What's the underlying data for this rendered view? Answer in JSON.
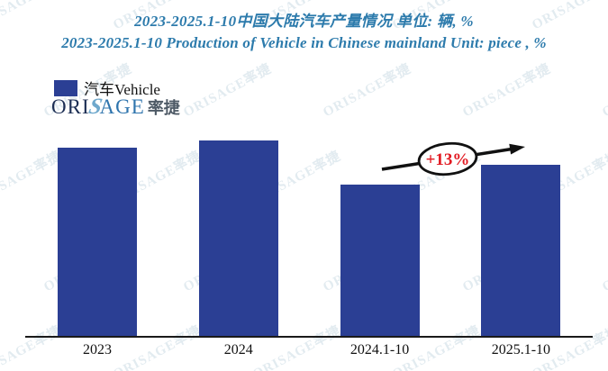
{
  "title": {
    "line1": "2023-2025.1-10中国大陆汽车产量情况 单位: 辆, %",
    "line2": "2023-2025.1-10 Production of Vehicle in Chinese mainland Unit: piece , %",
    "color": "#2d7bac"
  },
  "legend": {
    "label": "汽车Vehicle",
    "swatch_color": "#2b3f94"
  },
  "logo": {
    "ori": "ORI",
    "s": "S",
    "age": "AGE",
    "cn": "率捷"
  },
  "watermark": {
    "text": "ORISAGE率捷"
  },
  "chart_data": {
    "type": "bar",
    "title": "2023-2025.1-10中国大陆汽车产量情况 单位: 辆, %",
    "subtitle": "2023-2025.1-10 Production of Vehicle in Chinese mainland Unit: piece , %",
    "categories": [
      "2023",
      "2024",
      "2024.1-10",
      "2025.1-10"
    ],
    "values": [
      100,
      103.9,
      80.6,
      91.1
    ],
    "note": "No value axis or data labels are shown in the chart; values are a relative index estimated from bar heights with 2023 = 100. The last bar is +13% vs 2024.1-10.",
    "legend": [
      "汽车Vehicle"
    ],
    "bar_color": "#2b3f94",
    "xlabel": "",
    "ylabel": "",
    "grid": false,
    "value_axis_visible": false,
    "annotation": {
      "text": "+13%",
      "from": "2024.1-10",
      "to": "2025.1-10",
      "color": "#e21a22"
    }
  }
}
